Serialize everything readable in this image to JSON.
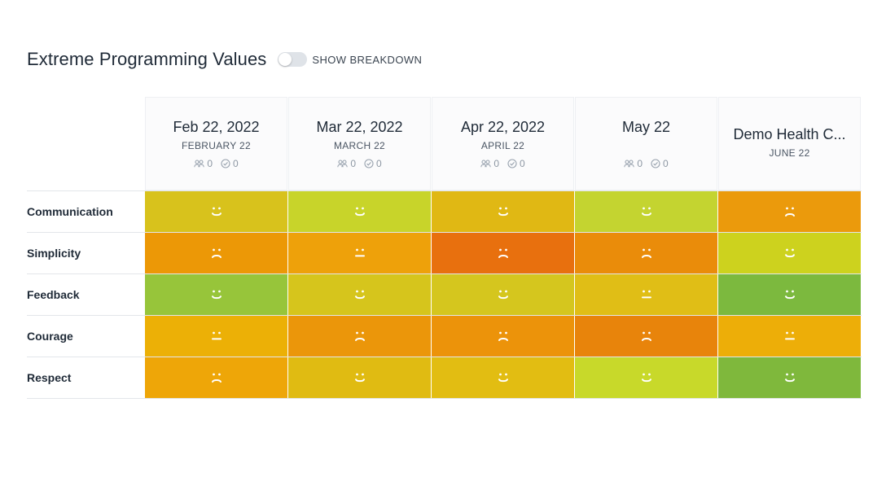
{
  "header": {
    "title": "Extreme Programming Values",
    "toggle_label": "SHOW BREAKDOWN"
  },
  "columns": [
    {
      "date": "Feb 22, 2022",
      "month": "FEBRUARY 22",
      "participants": "0",
      "completed": "0"
    },
    {
      "date": "Mar 22, 2022",
      "month": "MARCH 22",
      "participants": "0",
      "completed": "0"
    },
    {
      "date": "Apr 22, 2022",
      "month": "APRIL 22",
      "participants": "0",
      "completed": "0"
    },
    {
      "date": "May 22",
      "month": "",
      "participants": "0",
      "completed": "0"
    },
    {
      "date": "Demo Health C...",
      "month": "JUNE 22"
    }
  ],
  "rows": [
    {
      "label": "Communication",
      "cells": [
        {
          "mood": "happy",
          "color": "#d8c21c"
        },
        {
          "mood": "happy",
          "color": "#c8d42a"
        },
        {
          "mood": "happy",
          "color": "#e0b814"
        },
        {
          "mood": "happy",
          "color": "#c4d430"
        },
        {
          "mood": "sad",
          "color": "#eb9a0c"
        }
      ]
    },
    {
      "label": "Simplicity",
      "cells": [
        {
          "mood": "sad",
          "color": "#ec9806"
        },
        {
          "mood": "neutral",
          "color": "#eea10a"
        },
        {
          "mood": "sad",
          "color": "#e8700e"
        },
        {
          "mood": "sad",
          "color": "#ea8c0a"
        },
        {
          "mood": "happy",
          "color": "#cdd21e"
        }
      ]
    },
    {
      "label": "Feedback",
      "cells": [
        {
          "mood": "happy",
          "color": "#97c53a"
        },
        {
          "mood": "happy",
          "color": "#d6c51c"
        },
        {
          "mood": "happy",
          "color": "#d5c61e"
        },
        {
          "mood": "neutral",
          "color": "#e0be16"
        },
        {
          "mood": "happy",
          "color": "#7cb93e"
        }
      ]
    },
    {
      "label": "Courage",
      "cells": [
        {
          "mood": "neutral",
          "color": "#ecb006"
        },
        {
          "mood": "sad",
          "color": "#eb960a"
        },
        {
          "mood": "sad",
          "color": "#ec930a"
        },
        {
          "mood": "sad",
          "color": "#e8840b"
        },
        {
          "mood": "neutral",
          "color": "#edae08"
        }
      ]
    },
    {
      "label": "Respect",
      "cells": [
        {
          "mood": "sad",
          "color": "#eea608"
        },
        {
          "mood": "happy",
          "color": "#e0bb12"
        },
        {
          "mood": "happy",
          "color": "#e2bd12"
        },
        {
          "mood": "happy",
          "color": "#c8d92a"
        },
        {
          "mood": "happy",
          "color": "#7fb83c"
        }
      ]
    }
  ]
}
